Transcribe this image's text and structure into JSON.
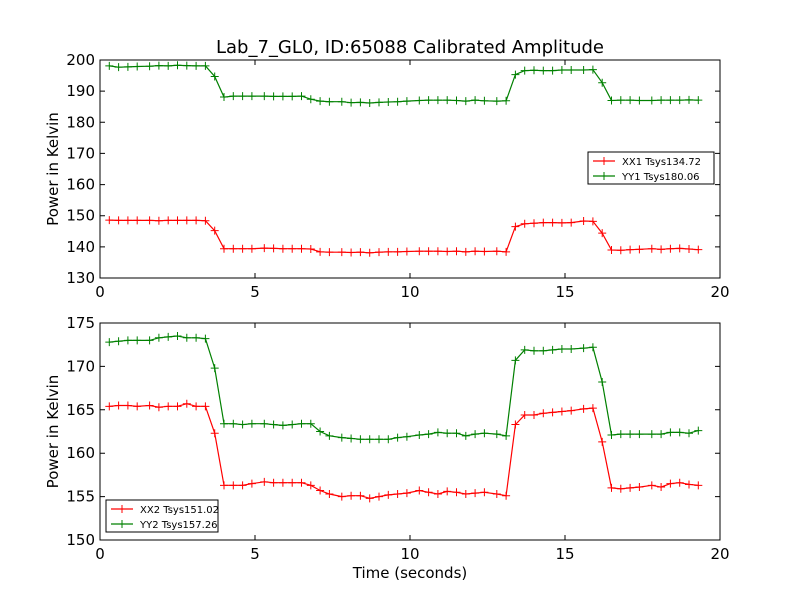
{
  "figure": {
    "title": "Lab_7_GL0, ID:65088 Calibrated Amplitude",
    "xlabel": "Time (seconds)"
  },
  "chart_data": [
    {
      "type": "line",
      "title": "Lab_7_GL0, ID:65088 Calibrated Amplitude",
      "xlabel": "",
      "ylabel": "Power in Kelvin",
      "xlim": [
        0,
        20
      ],
      "ylim": [
        130,
        200
      ],
      "xticks": [
        0,
        5,
        10,
        15,
        20
      ],
      "yticks": [
        130,
        140,
        150,
        160,
        170,
        180,
        190,
        200
      ],
      "grid": false,
      "legend_position": "center-right",
      "x": [
        0.3,
        0.6,
        0.9,
        1.2,
        1.6,
        1.9,
        2.2,
        2.5,
        2.8,
        3.1,
        3.4,
        3.7,
        4.0,
        4.3,
        4.6,
        4.9,
        5.3,
        5.6,
        5.9,
        6.2,
        6.5,
        6.8,
        7.1,
        7.4,
        7.8,
        8.1,
        8.4,
        8.7,
        9.0,
        9.3,
        9.6,
        9.9,
        10.3,
        10.6,
        10.9,
        11.2,
        11.5,
        11.8,
        12.1,
        12.4,
        12.8,
        13.1,
        13.4,
        13.7,
        14.0,
        14.3,
        14.6,
        14.9,
        15.2,
        15.6,
        15.9,
        16.2,
        16.5,
        16.8,
        17.1,
        17.4,
        17.8,
        18.1,
        18.4,
        18.7,
        19.0,
        19.3
      ],
      "series": [
        {
          "name": "XX1 Tsys134.72",
          "color": "#ff0000",
          "values": [
            148.6,
            148.5,
            148.5,
            148.5,
            148.5,
            148.4,
            148.5,
            148.5,
            148.5,
            148.5,
            148.4,
            145.2,
            139.4,
            139.4,
            139.4,
            139.4,
            139.6,
            139.5,
            139.4,
            139.4,
            139.4,
            139.3,
            138.4,
            138.3,
            138.3,
            138.2,
            138.3,
            138.1,
            138.3,
            138.4,
            138.4,
            138.5,
            138.6,
            138.6,
            138.6,
            138.5,
            138.6,
            138.4,
            138.6,
            138.5,
            138.6,
            138.4,
            146.5,
            147.4,
            147.6,
            147.8,
            147.8,
            147.7,
            147.8,
            148.3,
            148.2,
            144.4,
            139.0,
            138.9,
            139.1,
            139.2,
            139.4,
            139.2,
            139.4,
            139.5,
            139.3,
            139.1
          ]
        },
        {
          "name": "YY1 Tsys180.06",
          "color": "#008000",
          "values": [
            198.1,
            197.7,
            197.8,
            197.9,
            198.0,
            198.2,
            198.1,
            198.3,
            198.2,
            198.1,
            198.1,
            194.7,
            188.1,
            188.4,
            188.4,
            188.4,
            188.4,
            188.3,
            188.3,
            188.3,
            188.4,
            187.4,
            186.8,
            186.6,
            186.6,
            186.3,
            186.4,
            186.2,
            186.4,
            186.5,
            186.6,
            186.8,
            187.0,
            187.1,
            187.1,
            187.1,
            187.0,
            186.8,
            187.1,
            186.9,
            186.8,
            186.9,
            195.3,
            196.6,
            196.7,
            196.6,
            196.6,
            196.8,
            196.8,
            196.8,
            196.9,
            192.7,
            187.0,
            187.1,
            187.1,
            187.0,
            187.0,
            187.1,
            187.1,
            187.1,
            187.2,
            187.1
          ]
        }
      ]
    },
    {
      "type": "line",
      "title": "",
      "xlabel": "Time (seconds)",
      "ylabel": "Power in Kelvin",
      "xlim": [
        0,
        20
      ],
      "ylim": [
        150,
        175
      ],
      "xticks": [
        0,
        5,
        10,
        15,
        20
      ],
      "yticks": [
        150,
        155,
        160,
        165,
        170,
        175
      ],
      "grid": false,
      "legend_position": "lower-left",
      "x": [
        0.3,
        0.6,
        0.9,
        1.2,
        1.6,
        1.9,
        2.2,
        2.5,
        2.8,
        3.1,
        3.4,
        3.7,
        4.0,
        4.3,
        4.6,
        4.9,
        5.3,
        5.6,
        5.9,
        6.2,
        6.5,
        6.8,
        7.1,
        7.4,
        7.8,
        8.1,
        8.4,
        8.7,
        9.0,
        9.3,
        9.6,
        9.9,
        10.3,
        10.6,
        10.9,
        11.2,
        11.5,
        11.8,
        12.1,
        12.4,
        12.8,
        13.1,
        13.4,
        13.7,
        14.0,
        14.3,
        14.6,
        14.9,
        15.2,
        15.6,
        15.9,
        16.2,
        16.5,
        16.8,
        17.1,
        17.4,
        17.8,
        18.1,
        18.4,
        18.7,
        19.0,
        19.3
      ],
      "series": [
        {
          "name": "XX2 Tsys151.02",
          "color": "#ff0000",
          "values": [
            165.4,
            165.5,
            165.5,
            165.4,
            165.5,
            165.3,
            165.4,
            165.4,
            165.7,
            165.4,
            165.4,
            162.3,
            156.3,
            156.3,
            156.3,
            156.5,
            156.7,
            156.6,
            156.6,
            156.6,
            156.6,
            156.3,
            155.7,
            155.3,
            155.0,
            155.1,
            155.1,
            154.8,
            155.0,
            155.2,
            155.3,
            155.4,
            155.7,
            155.5,
            155.3,
            155.6,
            155.5,
            155.3,
            155.4,
            155.5,
            155.3,
            155.1,
            163.3,
            164.4,
            164.4,
            164.6,
            164.7,
            164.8,
            164.9,
            165.1,
            165.2,
            161.3,
            156.0,
            155.9,
            156.0,
            156.1,
            156.3,
            156.1,
            156.5,
            156.6,
            156.4,
            156.3
          ]
        },
        {
          "name": "YY2 Tsys157.26",
          "color": "#008000",
          "values": [
            172.8,
            172.9,
            173.0,
            173.0,
            173.0,
            173.3,
            173.4,
            173.5,
            173.3,
            173.3,
            173.2,
            169.8,
            163.4,
            163.4,
            163.3,
            163.4,
            163.4,
            163.3,
            163.2,
            163.3,
            163.4,
            163.4,
            162.5,
            162.0,
            161.8,
            161.7,
            161.6,
            161.6,
            161.6,
            161.6,
            161.8,
            161.9,
            162.1,
            162.2,
            162.4,
            162.3,
            162.3,
            162.0,
            162.2,
            162.3,
            162.2,
            162.0,
            170.7,
            171.9,
            171.8,
            171.8,
            171.9,
            172.0,
            172.0,
            172.1,
            172.2,
            168.2,
            162.1,
            162.2,
            162.2,
            162.2,
            162.2,
            162.2,
            162.4,
            162.4,
            162.3,
            162.6
          ]
        }
      ]
    }
  ]
}
